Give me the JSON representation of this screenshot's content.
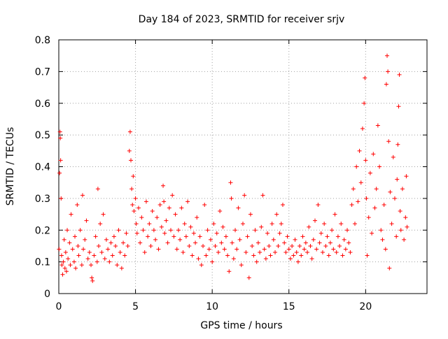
{
  "chart_data": {
    "type": "scatter",
    "title": "Day 184 of 2023, SRMTID for receiver srjv",
    "xlabel": "GPS time / hours",
    "ylabel": "SRMTID / TECUs",
    "xlim": [
      0,
      24
    ],
    "ylim": [
      0,
      0.8
    ],
    "x_ticks": [
      0,
      5,
      10,
      15,
      20
    ],
    "x_tick_labels": [
      "0",
      "5",
      "10",
      "15",
      "20"
    ],
    "y_ticks": [
      0,
      0.1,
      0.2,
      0.3,
      0.4,
      0.5,
      0.6,
      0.7,
      0.8
    ],
    "y_tick_labels": [
      "0",
      "0.1",
      "0.2",
      "0.3",
      "0.4",
      "0.5",
      "0.6",
      "0.7",
      "0.8"
    ],
    "grid": true,
    "marker": "+",
    "color": "#ff0000",
    "series": [
      {
        "name": "SRMTID",
        "points": [
          [
            0.02,
            0.14
          ],
          [
            0.05,
            0.38
          ],
          [
            0.08,
            0.51
          ],
          [
            0.1,
            0.49
          ],
          [
            0.12,
            0.42
          ],
          [
            0.15,
            0.3
          ],
          [
            0.18,
            0.12
          ],
          [
            0.2,
            0.09
          ],
          [
            0.25,
            0.06
          ],
          [
            0.3,
            0.1
          ],
          [
            0.35,
            0.17
          ],
          [
            0.4,
            0.08
          ],
          [
            0.45,
            0.13
          ],
          [
            0.5,
            0.07
          ],
          [
            0.55,
            0.2
          ],
          [
            0.6,
            0.11
          ],
          [
            0.7,
            0.16
          ],
          [
            0.75,
            0.09
          ],
          [
            0.8,
            0.25
          ],
          [
            0.9,
            0.14
          ],
          [
            1.0,
            0.1
          ],
          [
            1.05,
            0.18
          ],
          [
            1.1,
            0.08
          ],
          [
            1.2,
            0.28
          ],
          [
            1.25,
            0.15
          ],
          [
            1.3,
            0.12
          ],
          [
            1.4,
            0.2
          ],
          [
            1.5,
            0.09
          ],
          [
            1.55,
            0.31
          ],
          [
            1.6,
            0.14
          ],
          [
            1.7,
            0.17
          ],
          [
            1.8,
            0.23
          ],
          [
            1.9,
            0.11
          ],
          [
            2.0,
            0.13
          ],
          [
            2.1,
            0.09
          ],
          [
            2.15,
            0.05
          ],
          [
            2.2,
            0.04
          ],
          [
            2.3,
            0.12
          ],
          [
            2.4,
            0.18
          ],
          [
            2.5,
            0.1
          ],
          [
            2.55,
            0.33
          ],
          [
            2.6,
            0.15
          ],
          [
            2.7,
            0.22
          ],
          [
            2.8,
            0.13
          ],
          [
            2.9,
            0.25
          ],
          [
            3.0,
            0.11
          ],
          [
            3.1,
            0.17
          ],
          [
            3.2,
            0.14
          ],
          [
            3.3,
            0.1
          ],
          [
            3.4,
            0.16
          ],
          [
            3.5,
            0.12
          ],
          [
            3.6,
            0.18
          ],
          [
            3.7,
            0.15
          ],
          [
            3.8,
            0.09
          ],
          [
            3.9,
            0.2
          ],
          [
            4.0,
            0.13
          ],
          [
            4.1,
            0.08
          ],
          [
            4.2,
            0.16
          ],
          [
            4.3,
            0.12
          ],
          [
            4.4,
            0.19
          ],
          [
            4.5,
            0.15
          ],
          [
            4.6,
            0.45
          ],
          [
            4.65,
            0.51
          ],
          [
            4.7,
            0.42
          ],
          [
            4.75,
            0.33
          ],
          [
            4.8,
            0.28
          ],
          [
            4.85,
            0.37
          ],
          [
            4.9,
            0.26
          ],
          [
            5.0,
            0.3
          ],
          [
            5.05,
            0.22
          ],
          [
            5.1,
            0.19
          ],
          [
            5.2,
            0.27
          ],
          [
            5.3,
            0.16
          ],
          [
            5.4,
            0.24
          ],
          [
            5.5,
            0.2
          ],
          [
            5.6,
            0.13
          ],
          [
            5.7,
            0.29
          ],
          [
            5.8,
            0.18
          ],
          [
            5.9,
            0.22
          ],
          [
            6.0,
            0.15
          ],
          [
            6.1,
            0.26
          ],
          [
            6.2,
            0.2
          ],
          [
            6.3,
            0.17
          ],
          [
            6.4,
            0.24
          ],
          [
            6.5,
            0.14
          ],
          [
            6.6,
            0.28
          ],
          [
            6.7,
            0.21
          ],
          [
            6.8,
            0.34
          ],
          [
            6.85,
            0.29
          ],
          [
            6.9,
            0.19
          ],
          [
            7.0,
            0.23
          ],
          [
            7.1,
            0.16
          ],
          [
            7.2,
            0.27
          ],
          [
            7.3,
            0.2
          ],
          [
            7.4,
            0.31
          ],
          [
            7.5,
            0.18
          ],
          [
            7.6,
            0.25
          ],
          [
            7.7,
            0.14
          ],
          [
            7.8,
            0.2
          ],
          [
            7.9,
            0.17
          ],
          [
            8.0,
            0.27
          ],
          [
            8.1,
            0.13
          ],
          [
            8.2,
            0.22
          ],
          [
            8.3,
            0.18
          ],
          [
            8.4,
            0.29
          ],
          [
            8.5,
            0.15
          ],
          [
            8.6,
            0.21
          ],
          [
            8.7,
            0.12
          ],
          [
            8.8,
            0.19
          ],
          [
            8.9,
            0.16
          ],
          [
            9.0,
            0.24
          ],
          [
            9.1,
            0.11
          ],
          [
            9.2,
            0.18
          ],
          [
            9.3,
            0.09
          ],
          [
            9.4,
            0.15
          ],
          [
            9.5,
            0.28
          ],
          [
            9.6,
            0.12
          ],
          [
            9.7,
            0.2
          ],
          [
            9.8,
            0.14
          ],
          [
            9.9,
            0.17
          ],
          [
            10.0,
            0.1
          ],
          [
            10.1,
            0.22
          ],
          [
            10.2,
            0.15
          ],
          [
            10.3,
            0.19
          ],
          [
            10.4,
            0.13
          ],
          [
            10.5,
            0.26
          ],
          [
            10.6,
            0.16
          ],
          [
            10.7,
            0.21
          ],
          [
            10.8,
            0.14
          ],
          [
            10.9,
            0.18
          ],
          [
            11.0,
            0.12
          ],
          [
            11.1,
            0.07
          ],
          [
            11.2,
            0.35
          ],
          [
            11.25,
            0.3
          ],
          [
            11.3,
            0.16
          ],
          [
            11.4,
            0.11
          ],
          [
            11.5,
            0.2
          ],
          [
            11.6,
            0.14
          ],
          [
            11.7,
            0.27
          ],
          [
            11.8,
            0.17
          ],
          [
            11.9,
            0.09
          ],
          [
            12.0,
            0.22
          ],
          [
            12.1,
            0.31
          ],
          [
            12.2,
            0.13
          ],
          [
            12.3,
            0.18
          ],
          [
            12.4,
            0.05
          ],
          [
            12.5,
            0.25
          ],
          [
            12.6,
            0.15
          ],
          [
            12.7,
            0.12
          ],
          [
            12.8,
            0.2
          ],
          [
            12.9,
            0.1
          ],
          [
            13.0,
            0.16
          ],
          [
            13.1,
            0.13
          ],
          [
            13.2,
            0.21
          ],
          [
            13.3,
            0.31
          ],
          [
            13.4,
            0.14
          ],
          [
            13.5,
            0.11
          ],
          [
            13.6,
            0.19
          ],
          [
            13.7,
            0.15
          ],
          [
            13.8,
            0.12
          ],
          [
            13.9,
            0.22
          ],
          [
            14.0,
            0.17
          ],
          [
            14.1,
            0.13
          ],
          [
            14.2,
            0.25
          ],
          [
            14.3,
            0.15
          ],
          [
            14.4,
            0.19
          ],
          [
            14.5,
            0.22
          ],
          [
            14.6,
            0.28
          ],
          [
            14.7,
            0.16
          ],
          [
            14.8,
            0.13
          ],
          [
            14.9,
            0.18
          ],
          [
            15.0,
            0.14
          ],
          [
            15.1,
            0.11
          ],
          [
            15.2,
            0.15
          ],
          [
            15.3,
            0.12
          ],
          [
            15.4,
            0.17
          ],
          [
            15.5,
            0.13
          ],
          [
            15.6,
            0.1
          ],
          [
            15.7,
            0.15
          ],
          [
            15.8,
            0.12
          ],
          [
            15.9,
            0.18
          ],
          [
            16.0,
            0.14
          ],
          [
            16.1,
            0.16
          ],
          [
            16.2,
            0.13
          ],
          [
            16.3,
            0.21
          ],
          [
            16.4,
            0.15
          ],
          [
            16.5,
            0.11
          ],
          [
            16.6,
            0.17
          ],
          [
            16.7,
            0.23
          ],
          [
            16.8,
            0.14
          ],
          [
            16.9,
            0.28
          ],
          [
            17.0,
            0.16
          ],
          [
            17.1,
            0.19
          ],
          [
            17.2,
            0.13
          ],
          [
            17.3,
            0.22
          ],
          [
            17.4,
            0.15
          ],
          [
            17.5,
            0.18
          ],
          [
            17.6,
            0.12
          ],
          [
            17.7,
            0.16
          ],
          [
            17.8,
            0.2
          ],
          [
            17.9,
            0.14
          ],
          [
            18.0,
            0.25
          ],
          [
            18.1,
            0.13
          ],
          [
            18.2,
            0.18
          ],
          [
            18.3,
            0.15
          ],
          [
            18.4,
            0.22
          ],
          [
            18.5,
            0.12
          ],
          [
            18.6,
            0.17
          ],
          [
            18.7,
            0.14
          ],
          [
            18.8,
            0.2
          ],
          [
            18.9,
            0.16
          ],
          [
            19.0,
            0.13
          ],
          [
            19.1,
            0.28
          ],
          [
            19.2,
            0.33
          ],
          [
            19.3,
            0.22
          ],
          [
            19.4,
            0.4
          ],
          [
            19.5,
            0.29
          ],
          [
            19.6,
            0.45
          ],
          [
            19.7,
            0.35
          ],
          [
            19.8,
            0.52
          ],
          [
            19.9,
            0.6
          ],
          [
            19.95,
            0.68
          ],
          [
            20.0,
            0.42
          ],
          [
            20.05,
            0.3
          ],
          [
            20.1,
            0.12
          ],
          [
            20.2,
            0.24
          ],
          [
            20.3,
            0.38
          ],
          [
            20.4,
            0.19
          ],
          [
            20.5,
            0.44
          ],
          [
            20.6,
            0.27
          ],
          [
            20.7,
            0.33
          ],
          [
            20.8,
            0.53
          ],
          [
            20.9,
            0.4
          ],
          [
            21.0,
            0.2
          ],
          [
            21.1,
            0.17
          ],
          [
            21.2,
            0.28
          ],
          [
            21.3,
            0.14
          ],
          [
            21.35,
            0.66
          ],
          [
            21.4,
            0.75
          ],
          [
            21.45,
            0.7
          ],
          [
            21.5,
            0.48
          ],
          [
            21.55,
            0.08
          ],
          [
            21.6,
            0.32
          ],
          [
            21.7,
            0.22
          ],
          [
            21.8,
            0.43
          ],
          [
            21.9,
            0.3
          ],
          [
            22.0,
            0.18
          ],
          [
            22.05,
            0.36
          ],
          [
            22.1,
            0.47
          ],
          [
            22.15,
            0.59
          ],
          [
            22.2,
            0.69
          ],
          [
            22.25,
            0.26
          ],
          [
            22.3,
            0.2
          ],
          [
            22.4,
            0.33
          ],
          [
            22.5,
            0.17
          ],
          [
            22.6,
            0.24
          ],
          [
            22.65,
            0.37
          ],
          [
            22.7,
            0.21
          ]
        ]
      }
    ]
  }
}
